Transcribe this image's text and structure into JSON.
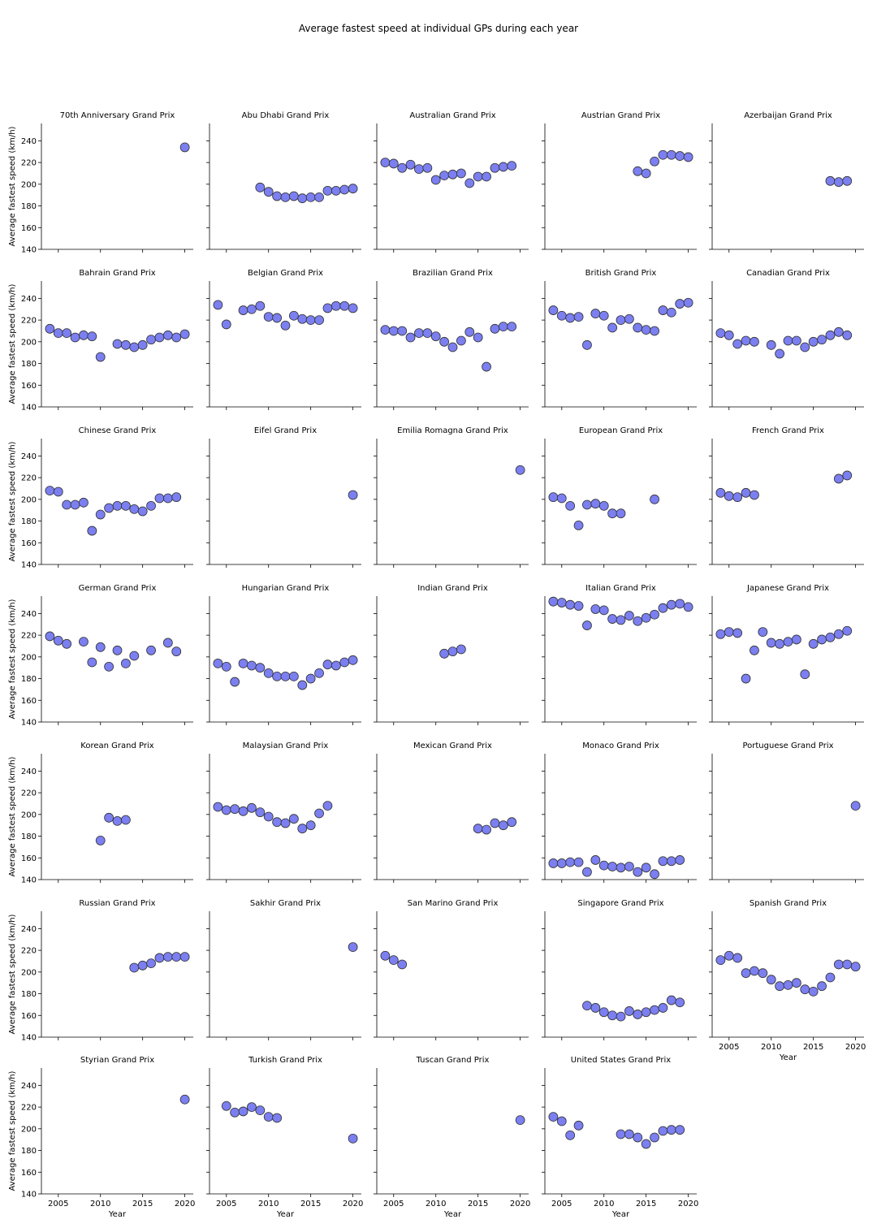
{
  "title": "Average fastest speed at individual GPs during each year",
  "chart_data": {
    "type": "scatter",
    "layout": "facet-grid",
    "xlabel": "Year",
    "ylabel": "Average fastest speed (km/h)",
    "xlim": [
      2003,
      2021
    ],
    "ylim": [
      140,
      256
    ],
    "xticks": [
      2005,
      2010,
      2015,
      2020
    ],
    "yticks": [
      140,
      160,
      180,
      200,
      220,
      240
    ],
    "marker_color": "#7b7ff0",
    "marker_edge": "#333333",
    "panels": [
      {
        "name": "70th Anniversary Grand Prix",
        "x": [
          2020
        ],
        "y": [
          234
        ]
      },
      {
        "name": "Abu Dhabi Grand Prix",
        "x": [
          2009,
          2010,
          2011,
          2012,
          2013,
          2014,
          2015,
          2016,
          2017,
          2018,
          2019,
          2020
        ],
        "y": [
          197,
          193,
          189,
          188,
          189,
          187,
          188,
          188,
          194,
          194,
          195,
          196
        ]
      },
      {
        "name": "Australian Grand Prix",
        "x": [
          2004,
          2005,
          2006,
          2007,
          2008,
          2009,
          2010,
          2011,
          2012,
          2013,
          2014,
          2015,
          2016,
          2017,
          2018,
          2019
        ],
        "y": [
          220,
          219,
          215,
          218,
          214,
          215,
          204,
          208,
          209,
          210,
          201,
          207,
          207,
          215,
          216,
          217
        ]
      },
      {
        "name": "Austrian Grand Prix",
        "x": [
          2014,
          2015,
          2016,
          2017,
          2018,
          2019,
          2020
        ],
        "y": [
          212,
          210,
          221,
          227,
          227,
          226,
          225
        ]
      },
      {
        "name": "Azerbaijan Grand Prix",
        "x": [
          2017,
          2018,
          2019
        ],
        "y": [
          203,
          202,
          203
        ]
      },
      {
        "name": "Bahrain Grand Prix",
        "x": [
          2004,
          2005,
          2006,
          2007,
          2008,
          2009,
          2010,
          2012,
          2013,
          2014,
          2015,
          2016,
          2017,
          2018,
          2019,
          2020
        ],
        "y": [
          212,
          208,
          208,
          204,
          206,
          205,
          186,
          198,
          197,
          195,
          197,
          202,
          204,
          206,
          204,
          207
        ]
      },
      {
        "name": "Belgian Grand Prix",
        "x": [
          2004,
          2005,
          2007,
          2008,
          2009,
          2010,
          2011,
          2012,
          2013,
          2014,
          2015,
          2016,
          2017,
          2018,
          2019,
          2020
        ],
        "y": [
          234,
          216,
          229,
          230,
          233,
          223,
          222,
          215,
          224,
          221,
          220,
          220,
          231,
          233,
          233,
          231
        ]
      },
      {
        "name": "Brazilian Grand Prix",
        "x": [
          2004,
          2005,
          2006,
          2007,
          2008,
          2009,
          2010,
          2011,
          2012,
          2013,
          2014,
          2015,
          2016,
          2017,
          2018,
          2019
        ],
        "y": [
          211,
          210,
          210,
          204,
          208,
          208,
          205,
          200,
          195,
          201,
          209,
          204,
          177,
          212,
          214,
          214
        ]
      },
      {
        "name": "British Grand Prix",
        "x": [
          2004,
          2005,
          2006,
          2007,
          2008,
          2009,
          2010,
          2011,
          2012,
          2013,
          2014,
          2015,
          2016,
          2017,
          2018,
          2019,
          2020
        ],
        "y": [
          229,
          224,
          222,
          223,
          197,
          226,
          224,
          213,
          220,
          221,
          213,
          211,
          210,
          229,
          227,
          235,
          236
        ]
      },
      {
        "name": "Canadian Grand Prix",
        "x": [
          2004,
          2005,
          2006,
          2007,
          2008,
          2010,
          2011,
          2012,
          2013,
          2014,
          2015,
          2016,
          2017,
          2018,
          2019
        ],
        "y": [
          208,
          206,
          198,
          201,
          200,
          197,
          189,
          201,
          201,
          195,
          200,
          202,
          206,
          209,
          206
        ]
      },
      {
        "name": "Chinese Grand Prix",
        "x": [
          2004,
          2005,
          2006,
          2007,
          2008,
          2009,
          2010,
          2011,
          2012,
          2013,
          2014,
          2015,
          2016,
          2017,
          2018,
          2019
        ],
        "y": [
          208,
          207,
          195,
          195,
          197,
          171,
          186,
          192,
          194,
          194,
          191,
          189,
          194,
          201,
          201,
          202
        ]
      },
      {
        "name": "Eifel Grand Prix",
        "x": [
          2020
        ],
        "y": [
          204
        ]
      },
      {
        "name": "Emilia Romagna Grand Prix",
        "x": [
          2020
        ],
        "y": [
          227
        ]
      },
      {
        "name": "European Grand Prix",
        "x": [
          2004,
          2005,
          2006,
          2007,
          2008,
          2009,
          2010,
          2011,
          2012,
          2016
        ],
        "y": [
          202,
          201,
          194,
          176,
          195,
          196,
          194,
          187,
          187,
          200
        ]
      },
      {
        "name": "French Grand Prix",
        "x": [
          2004,
          2005,
          2006,
          2007,
          2008,
          2018,
          2019
        ],
        "y": [
          206,
          203,
          202,
          206,
          204,
          219,
          222
        ]
      },
      {
        "name": "German Grand Prix",
        "x": [
          2004,
          2005,
          2006,
          2008,
          2009,
          2010,
          2011,
          2012,
          2013,
          2014,
          2016,
          2018,
          2019
        ],
        "y": [
          219,
          215,
          212,
          214,
          195,
          209,
          191,
          206,
          194,
          201,
          206,
          213,
          205
        ]
      },
      {
        "name": "Hungarian Grand Prix",
        "x": [
          2004,
          2005,
          2006,
          2007,
          2008,
          2009,
          2010,
          2011,
          2012,
          2013,
          2014,
          2015,
          2016,
          2017,
          2018,
          2019,
          2020
        ],
        "y": [
          194,
          191,
          177,
          194,
          192,
          190,
          185,
          182,
          182,
          182,
          174,
          180,
          185,
          193,
          192,
          195,
          197
        ]
      },
      {
        "name": "Indian Grand Prix",
        "x": [
          2011,
          2012,
          2013
        ],
        "y": [
          203,
          205,
          207
        ]
      },
      {
        "name": "Italian Grand Prix",
        "x": [
          2004,
          2005,
          2006,
          2007,
          2008,
          2009,
          2010,
          2011,
          2012,
          2013,
          2014,
          2015,
          2016,
          2017,
          2018,
          2019,
          2020
        ],
        "y": [
          251,
          250,
          248,
          247,
          229,
          244,
          243,
          235,
          234,
          238,
          233,
          236,
          239,
          245,
          248,
          249,
          246
        ]
      },
      {
        "name": "Japanese Grand Prix",
        "x": [
          2004,
          2005,
          2006,
          2007,
          2008,
          2009,
          2010,
          2011,
          2012,
          2013,
          2014,
          2015,
          2016,
          2017,
          2018,
          2019
        ],
        "y": [
          221,
          223,
          222,
          180,
          206,
          223,
          213,
          212,
          214,
          216,
          184,
          212,
          216,
          218,
          221,
          224
        ]
      },
      {
        "name": "Korean Grand Prix",
        "x": [
          2010,
          2011,
          2012,
          2013
        ],
        "y": [
          176,
          197,
          194,
          195
        ]
      },
      {
        "name": "Malaysian Grand Prix",
        "x": [
          2004,
          2005,
          2006,
          2007,
          2008,
          2009,
          2010,
          2011,
          2012,
          2013,
          2014,
          2015,
          2016,
          2017
        ],
        "y": [
          207,
          204,
          205,
          203,
          206,
          202,
          198,
          193,
          192,
          196,
          187,
          190,
          201,
          208
        ]
      },
      {
        "name": "Mexican Grand Prix",
        "x": [
          2015,
          2016,
          2017,
          2018,
          2019
        ],
        "y": [
          187,
          186,
          192,
          190,
          193
        ]
      },
      {
        "name": "Monaco Grand Prix",
        "x": [
          2004,
          2005,
          2006,
          2007,
          2008,
          2009,
          2010,
          2011,
          2012,
          2013,
          2014,
          2015,
          2016,
          2017,
          2018,
          2019
        ],
        "y": [
          155,
          155,
          156,
          156,
          147,
          158,
          153,
          152,
          151,
          152,
          147,
          151,
          145,
          157,
          157,
          158
        ]
      },
      {
        "name": "Portuguese Grand Prix",
        "x": [
          2020
        ],
        "y": [
          208
        ]
      },
      {
        "name": "Russian Grand Prix",
        "x": [
          2014,
          2015,
          2016,
          2017,
          2018,
          2019,
          2020
        ],
        "y": [
          204,
          206,
          208,
          213,
          214,
          214,
          214
        ]
      },
      {
        "name": "Sakhir Grand Prix",
        "x": [
          2020
        ],
        "y": [
          223
        ]
      },
      {
        "name": "San Marino Grand Prix",
        "x": [
          2004,
          2005,
          2006
        ],
        "y": [
          215,
          211,
          207
        ]
      },
      {
        "name": "Singapore Grand Prix",
        "x": [
          2008,
          2009,
          2010,
          2011,
          2012,
          2013,
          2014,
          2015,
          2016,
          2017,
          2018,
          2019
        ],
        "y": [
          169,
          167,
          163,
          160,
          159,
          164,
          161,
          163,
          165,
          167,
          174,
          172
        ]
      },
      {
        "name": "Spanish Grand Prix",
        "x": [
          2004,
          2005,
          2006,
          2007,
          2008,
          2009,
          2010,
          2011,
          2012,
          2013,
          2014,
          2015,
          2016,
          2017,
          2018,
          2019,
          2020
        ],
        "y": [
          211,
          215,
          213,
          199,
          201,
          199,
          193,
          187,
          188,
          190,
          184,
          182,
          187,
          195,
          207,
          207,
          205
        ]
      },
      {
        "name": "Styrian Grand Prix",
        "x": [
          2020
        ],
        "y": [
          227
        ]
      },
      {
        "name": "Turkish Grand Prix",
        "x": [
          2005,
          2006,
          2007,
          2008,
          2009,
          2010,
          2011,
          2020
        ],
        "y": [
          221,
          215,
          216,
          220,
          217,
          211,
          210,
          191
        ]
      },
      {
        "name": "Tuscan Grand Prix",
        "x": [
          2020
        ],
        "y": [
          208
        ]
      },
      {
        "name": "United States Grand Prix",
        "x": [
          2004,
          2005,
          2006,
          2007,
          2012,
          2013,
          2014,
          2015,
          2016,
          2017,
          2018,
          2019
        ],
        "y": [
          211,
          207,
          194,
          203,
          195,
          195,
          192,
          186,
          192,
          198,
          199,
          199
        ]
      }
    ]
  }
}
